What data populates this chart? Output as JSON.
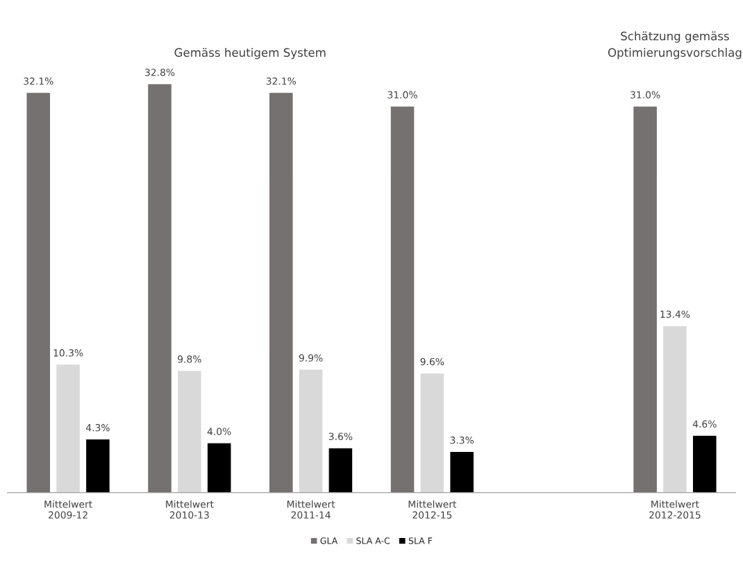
{
  "chart_data": {
    "type": "bar",
    "categories": [
      "Mittelwert\n2009-12",
      "Mittelwert\n2010-13",
      "Mittelwert\n2011-14",
      "Mittelwert\n2012-15",
      null,
      "Mittelwert\n2012-2015"
    ],
    "series": [
      {
        "name": "GLA",
        "color": "#767171",
        "values": [
          32.1,
          32.8,
          32.1,
          31.0,
          null,
          31.0
        ],
        "value_labels": [
          "32.1%",
          "32.8%",
          "32.1%",
          "31.0%",
          null,
          "31.0%"
        ]
      },
      {
        "name": "SLA A-C",
        "color": "#d9d9d9",
        "values": [
          10.3,
          9.8,
          9.9,
          9.6,
          null,
          13.4
        ],
        "value_labels": [
          "10.3%",
          "9.8%",
          "9.9%",
          "9.6%",
          null,
          "13.4%"
        ]
      },
      {
        "name": "SLA F",
        "color": "#000000",
        "values": [
          4.3,
          4.0,
          3.6,
          3.3,
          null,
          4.6
        ],
        "value_labels": [
          "4.3%",
          "4.0%",
          "3.6%",
          "3.3%",
          null,
          "4.6%"
        ]
      }
    ],
    "annotations": [
      "Gemäss heutigem System",
      "Schätzung gemäss\nOptimierungsvorschlag"
    ],
    "legend": "bottom",
    "grid": false
  }
}
